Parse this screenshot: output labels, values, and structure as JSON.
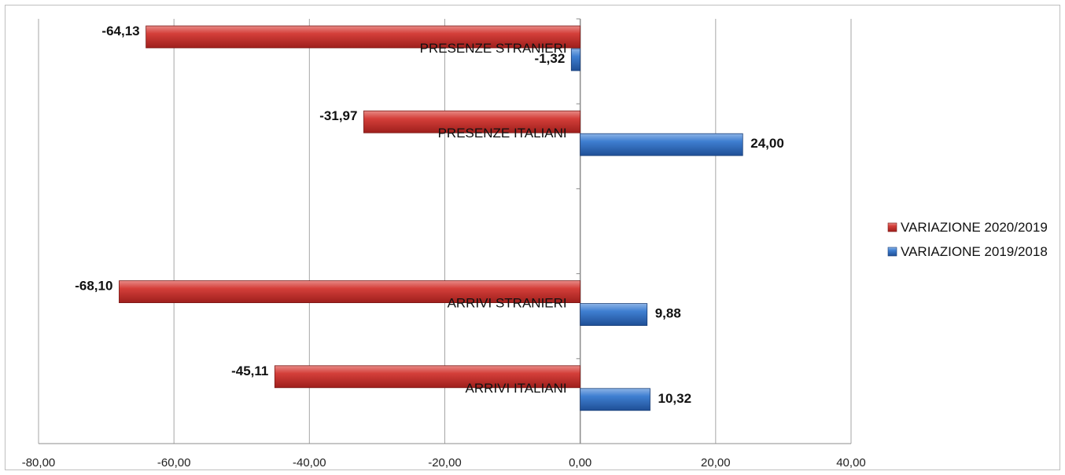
{
  "chart_data": {
    "type": "bar",
    "orientation": "horizontal",
    "title": "",
    "xlabel": "",
    "ylabel": "",
    "xlim": [
      -80,
      40
    ],
    "xticks": [
      -80,
      -60,
      -40,
      -20,
      0,
      20,
      40
    ],
    "xtick_labels": [
      "-80,00",
      "-60,00",
      "-40,00",
      "-20,00",
      "0,00",
      "20,00",
      "40,00"
    ],
    "grid": true,
    "legend_position": "right",
    "categories": [
      "ARRIVI   ITALIANI",
      "ARRIVI STRANIERI",
      "",
      "PRESENZE ITALIANI",
      "PRESENZE STRANIERI"
    ],
    "series": [
      {
        "name": "VARIAZIONE 2020/2019",
        "color": "#c0312e",
        "values": [
          -45.11,
          -68.1,
          null,
          -31.97,
          -64.13
        ],
        "labels": [
          "-45,11",
          "-68,10",
          "",
          "-31,97",
          "-64,13"
        ]
      },
      {
        "name": "VARIAZIONE 2019/2018",
        "color": "#2e6bbf",
        "values": [
          10.32,
          9.88,
          null,
          24.0,
          -1.32
        ],
        "labels": [
          "10,32",
          "9,88",
          "",
          "24,00",
          "-1,32"
        ]
      }
    ]
  }
}
